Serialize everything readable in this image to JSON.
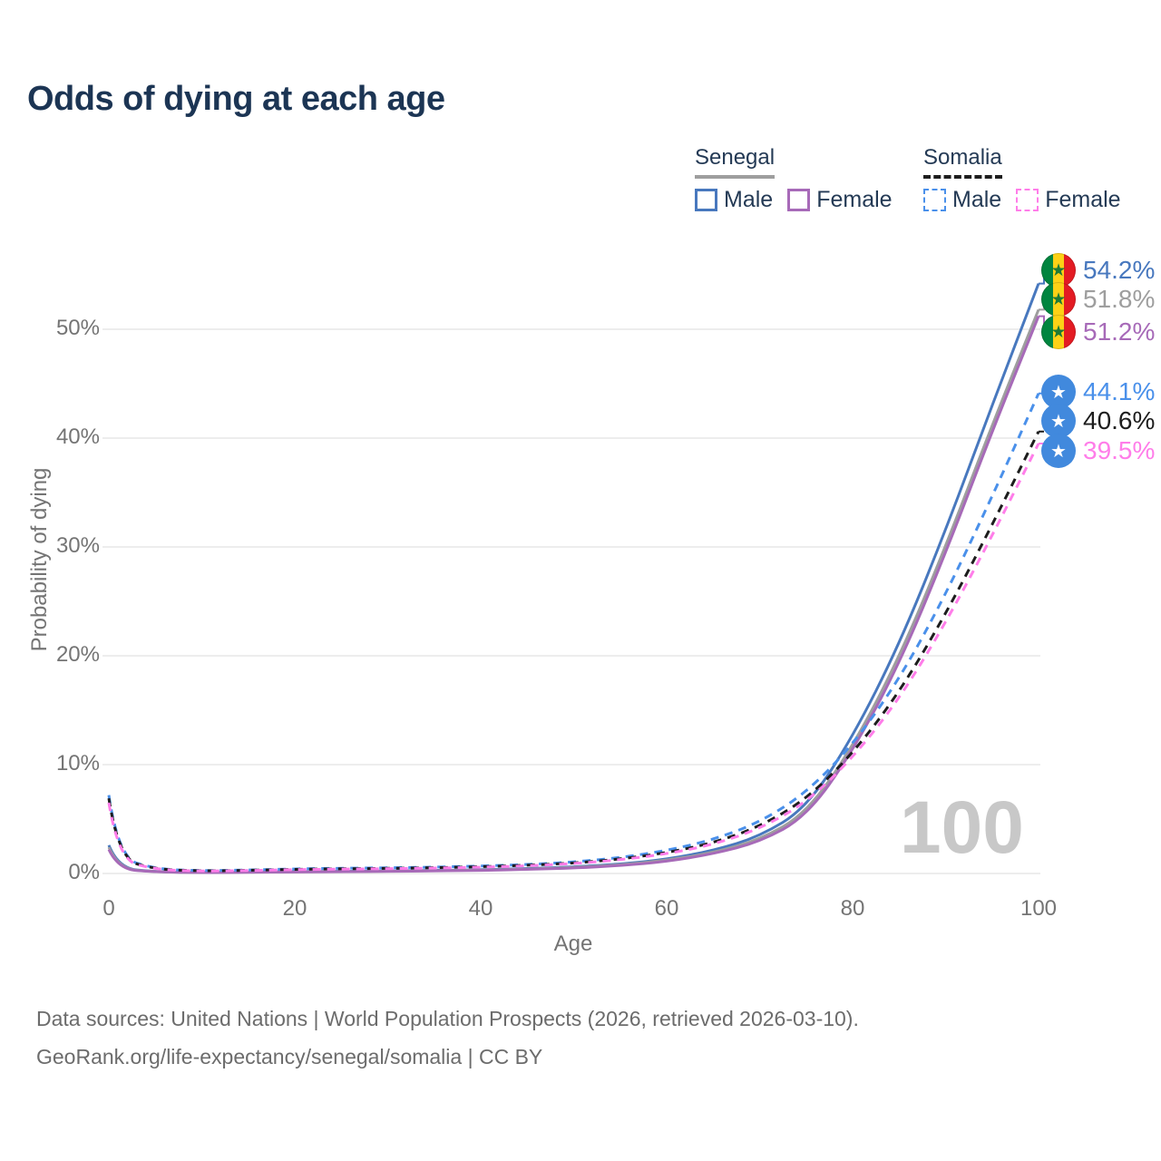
{
  "title": "Odds of dying at each age",
  "legend": {
    "groups": [
      {
        "name": "Senegal",
        "style": "solid",
        "underline_color": "#9e9e9e",
        "items": [
          {
            "label": "Male",
            "color": "#4878be"
          },
          {
            "label": "Female",
            "color": "#a76ab8"
          }
        ]
      },
      {
        "name": "Somalia",
        "style": "dashed",
        "underline_color": "#1d1d1d",
        "items": [
          {
            "label": "Male",
            "color": "#4a90ea"
          },
          {
            "label": "Female",
            "color": "#ff7de9"
          }
        ]
      }
    ]
  },
  "watermark": "100",
  "footer": {
    "line1": "Data sources: United Nations | World Population Prospects (2026, retrieved 2026-03-10).",
    "line2": "GeoRank.org/life-expectancy/senegal/somalia | CC BY"
  },
  "chart_data": {
    "type": "line",
    "title": "Odds of dying at each age",
    "xlabel": "Age",
    "ylabel": "Probability of dying",
    "xlim": [
      0,
      100
    ],
    "ylim_pct": [
      0,
      57
    ],
    "grid": "horizontal",
    "x_ticks": [
      0,
      20,
      40,
      60,
      80,
      100
    ],
    "y_ticks": [
      "0%",
      "10%",
      "20%",
      "30%",
      "40%",
      "50%"
    ],
    "legend_position": "top-right",
    "ages": [
      0,
      1,
      5,
      10,
      15,
      20,
      25,
      30,
      35,
      40,
      45,
      50,
      55,
      60,
      65,
      70,
      75,
      80,
      85,
      90,
      95,
      100
    ],
    "series": [
      {
        "id": "senegal-male",
        "country": "Senegal",
        "sex": "Male",
        "style": "solid",
        "color": "#4878be",
        "end_label": "54.2%",
        "end_value": 54.2,
        "values": [
          2.6,
          0.5,
          0.15,
          0.1,
          0.13,
          0.17,
          0.2,
          0.23,
          0.28,
          0.34,
          0.45,
          0.6,
          0.85,
          1.3,
          2.1,
          3.4,
          6.0,
          12.5,
          21.0,
          31.5,
          43.0,
          54.2
        ]
      },
      {
        "id": "senegal",
        "country": "Senegal",
        "sex": "",
        "style": "solid",
        "color": "#9e9e9e",
        "end_label": "51.8%",
        "end_value": 51.8,
        "values": [
          2.4,
          0.45,
          0.14,
          0.09,
          0.12,
          0.15,
          0.18,
          0.21,
          0.25,
          0.31,
          0.41,
          0.55,
          0.78,
          1.2,
          1.9,
          3.1,
          5.5,
          11.6,
          19.8,
          30.0,
          41.2,
          51.8
        ]
      },
      {
        "id": "senegal-female",
        "country": "Senegal",
        "sex": "Female",
        "style": "solid",
        "color": "#a76ab8",
        "end_label": "51.2%",
        "end_value": 51.2,
        "values": [
          2.2,
          0.4,
          0.13,
          0.08,
          0.11,
          0.14,
          0.16,
          0.19,
          0.23,
          0.28,
          0.37,
          0.5,
          0.72,
          1.1,
          1.8,
          2.9,
          5.2,
          11.2,
          19.2,
          29.4,
          40.6,
          51.2
        ]
      },
      {
        "id": "somalia-male",
        "country": "Somalia",
        "sex": "Male",
        "style": "dashed",
        "color": "#4a90ea",
        "end_label": "44.1%",
        "end_value": 44.1,
        "values": [
          7.2,
          1.5,
          0.4,
          0.25,
          0.32,
          0.42,
          0.48,
          0.52,
          0.58,
          0.68,
          0.82,
          1.05,
          1.45,
          2.1,
          3.1,
          4.7,
          7.4,
          11.8,
          17.8,
          25.6,
          34.6,
          44.1
        ]
      },
      {
        "id": "somalia",
        "country": "Somalia",
        "sex": "",
        "style": "dashed",
        "color": "#1d1d1d",
        "end_label": "40.6%",
        "end_value": 40.6,
        "values": [
          6.9,
          1.4,
          0.37,
          0.23,
          0.29,
          0.38,
          0.43,
          0.47,
          0.53,
          0.62,
          0.75,
          0.95,
          1.32,
          1.9,
          2.8,
          4.3,
          6.8,
          11.0,
          16.6,
          23.8,
          32.0,
          40.6
        ]
      },
      {
        "id": "somalia-female",
        "country": "Somalia",
        "sex": "Female",
        "style": "dashed",
        "color": "#ff7de9",
        "end_label": "39.5%",
        "end_value": 39.5,
        "values": [
          6.5,
          1.3,
          0.35,
          0.21,
          0.27,
          0.35,
          0.4,
          0.44,
          0.49,
          0.57,
          0.7,
          0.9,
          1.25,
          1.8,
          2.65,
          4.1,
          6.5,
          10.6,
          16.0,
          23.0,
          31.0,
          39.5
        ]
      }
    ]
  }
}
